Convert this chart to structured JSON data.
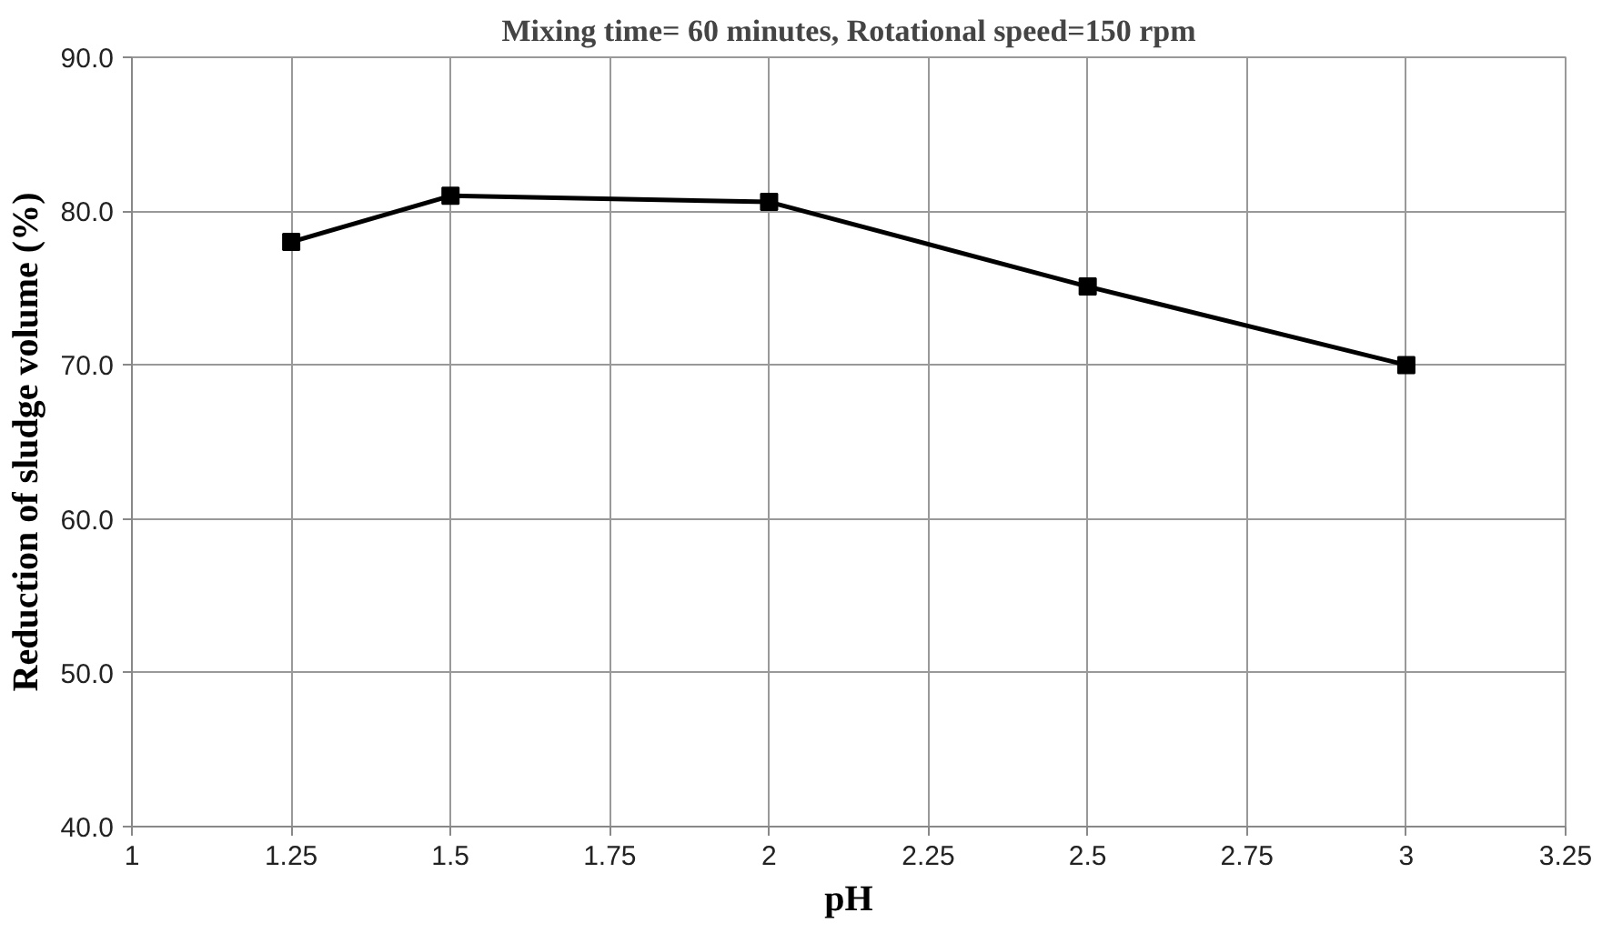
{
  "chart_data": {
    "type": "line",
    "title": "Mixing time= 60 minutes, Rotational speed=150 rpm",
    "xlabel": "pH",
    "ylabel": "Reduction of sludge volume (%)",
    "x": [
      1.25,
      1.5,
      2,
      2.5,
      3
    ],
    "series": [
      {
        "color": "#000000",
        "values": [
          78.0,
          81.0,
          80.6,
          75.1,
          70.0
        ]
      }
    ],
    "xlim": [
      1,
      3.25
    ],
    "xticks": [
      1,
      1.25,
      1.5,
      1.75,
      2,
      2.25,
      2.5,
      2.75,
      3,
      3.25
    ],
    "ylim": [
      40,
      90
    ],
    "yticks": [
      {
        "value": 40,
        "label": "40.0"
      },
      {
        "value": 50,
        "label": "50.0"
      },
      {
        "value": 60,
        "label": "60.0"
      },
      {
        "value": 70,
        "label": "70.0"
      },
      {
        "value": 80,
        "label": "80.0"
      },
      {
        "value": 90,
        "label": "90.0"
      }
    ],
    "grid": true,
    "marker": "square",
    "line_style": "solid"
  }
}
